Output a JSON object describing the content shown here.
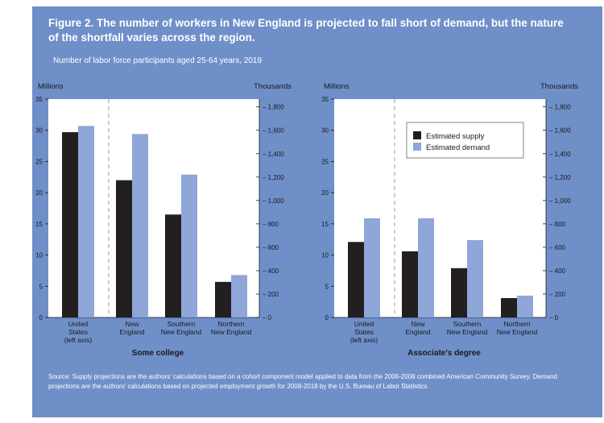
{
  "title": "Figure 2. The number of workers in New England is projected to fall short of demand, but the nature of the shortfall varies across the region.",
  "subtitle": "Number of labor force participants aged 25-64 years, 2019",
  "source": "Source: Supply projections are the authors' calculations based on a cohort component model applied to data from the 2006-2008 combined American Community Survey.  Demand projections are the authors' calculations based on projected employment growth for 2008-2018 by the U.S. Bureau of Labor Statistics.",
  "colors": {
    "supply": "#231f20",
    "demand": "#8ea6d8",
    "panel": "#ffffff",
    "card": "#6f8fc9"
  },
  "legend": [
    "Estimated supply",
    "Estimated demand"
  ],
  "chart_data": [
    {
      "type": "bar",
      "title": "Some college",
      "left_axis_label": "Millions",
      "right_axis_label": "Thousands",
      "left_ylim": [
        0,
        35
      ],
      "left_ticks": [
        "0",
        "5",
        "10",
        "15",
        "20",
        "25",
        "30",
        "35"
      ],
      "right_ylim": [
        0,
        1866.67
      ],
      "right_ticks": [
        "0",
        "200",
        "400",
        "600",
        "800",
        "1,000",
        "1,200",
        "1,400",
        "1,600",
        "1,800"
      ],
      "categories": [
        [
          "United",
          "States",
          "(left axis)"
        ],
        [
          "New",
          "England"
        ],
        [
          "Southern",
          "New England"
        ],
        [
          "Northern",
          "New England"
        ]
      ],
      "series": [
        {
          "name": "Estimated supply",
          "values_millions": [
            29.7,
            22.0,
            16.5,
            5.7
          ]
        },
        {
          "name": "Estimated demand",
          "values_millions": [
            30.7,
            29.4,
            22.9,
            6.8
          ]
        }
      ]
    },
    {
      "type": "bar",
      "title": "Associate's degree",
      "left_axis_label": "Millions",
      "right_axis_label": "Thousands",
      "left_ylim": [
        0,
        35
      ],
      "left_ticks": [
        "0",
        "5",
        "10",
        "15",
        "20",
        "25",
        "30",
        "35"
      ],
      "right_ylim": [
        0,
        1866.67
      ],
      "right_ticks": [
        "0",
        "200",
        "400",
        "600",
        "800",
        "1,000",
        "1,200",
        "1,400",
        "1,600",
        "1,800"
      ],
      "categories": [
        [
          "United",
          "States",
          "(left axis)"
        ],
        [
          "New",
          "England"
        ],
        [
          "Southern",
          "New England"
        ],
        [
          "Northern",
          "New England"
        ]
      ],
      "series": [
        {
          "name": "Estimated supply",
          "values_millions": [
            12.1,
            10.6,
            7.9,
            3.1
          ]
        },
        {
          "name": "Estimated demand",
          "values_millions": [
            15.9,
            15.9,
            12.4,
            3.5
          ]
        }
      ]
    }
  ]
}
